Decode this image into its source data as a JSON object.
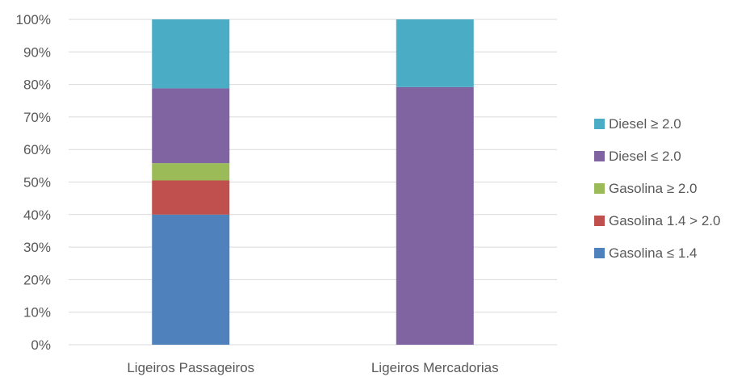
{
  "chart_data": {
    "type": "bar",
    "stacked": true,
    "percent": true,
    "categories": [
      "Ligeiros Passageiros",
      "Ligeiros Mercadorias"
    ],
    "series": [
      {
        "name": "Gasolina ≤ 1.4",
        "values": [
          40,
          0
        ],
        "color": "#4F81BD"
      },
      {
        "name": "Gasolina 1.4 > 2.0",
        "values": [
          10.5,
          0
        ],
        "color": "#C0504D"
      },
      {
        "name": "Gasolina ≥ 2.0",
        "values": [
          5.3,
          0
        ],
        "color": "#9BBB59"
      },
      {
        "name": "Diesel ≤ 2.0",
        "values": [
          23,
          79.2
        ],
        "color": "#8064A2"
      },
      {
        "name": "Diesel ≥ 2.0",
        "values": [
          21.2,
          20.8
        ],
        "color": "#4BACC6"
      }
    ],
    "ylim": [
      0,
      100
    ],
    "yticks": [
      "0%",
      "10%",
      "20%",
      "30%",
      "40%",
      "50%",
      "60%",
      "70%",
      "80%",
      "90%",
      "100%"
    ],
    "grid": true,
    "legend": "right",
    "colors": {
      "grid": "#D9D9D9",
      "text": "#595959"
    }
  }
}
